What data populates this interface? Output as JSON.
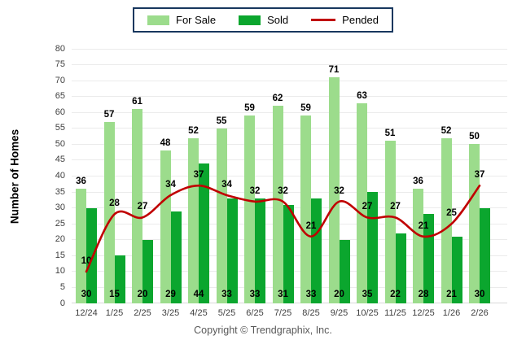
{
  "legend": {
    "items": [
      {
        "label": "For Sale",
        "color": "#9CDC8C",
        "type": "box"
      },
      {
        "label": "Sold",
        "color": "#0BA62E",
        "type": "box"
      },
      {
        "label": "Pended",
        "color": "#C00000",
        "type": "line"
      }
    ]
  },
  "footer": {
    "copyright": "Copyright © Trendgraphix, Inc."
  },
  "chart_data": {
    "type": "bar",
    "subtype": "grouped bars with line overlay",
    "categories": [
      "12/24",
      "1/25",
      "2/25",
      "3/25",
      "4/25",
      "5/25",
      "6/25",
      "7/25",
      "8/25",
      "9/25",
      "10/25",
      "11/25",
      "12/25",
      "1/26",
      "2/26"
    ],
    "series": [
      {
        "name": "For Sale",
        "type": "bar",
        "color": "#9CDC8C",
        "values": [
          36,
          57,
          61,
          48,
          52,
          55,
          59,
          62,
          59,
          71,
          63,
          51,
          36,
          52,
          50
        ]
      },
      {
        "name": "Sold",
        "type": "bar",
        "color": "#0BA62E",
        "values": [
          30,
          15,
          20,
          29,
          44,
          33,
          33,
          31,
          33,
          20,
          35,
          22,
          28,
          21,
          30
        ]
      },
      {
        "name": "Pended",
        "type": "line",
        "color": "#C00000",
        "values": [
          10,
          28,
          27,
          34,
          37,
          34,
          32,
          32,
          21,
          32,
          27,
          27,
          21,
          25,
          37
        ]
      }
    ],
    "title": "",
    "xlabel": "",
    "ylabel": "Number of Homes",
    "ylim": [
      0,
      80
    ],
    "ytick_step": 5,
    "grid": true,
    "legend_position": "top-center"
  },
  "colors": {
    "grid": "#EBEBEB",
    "baseline": "#D9D9D9",
    "axis_text": "#3f3f3f",
    "value_label": "#000000",
    "legend_border": "#17375E"
  }
}
